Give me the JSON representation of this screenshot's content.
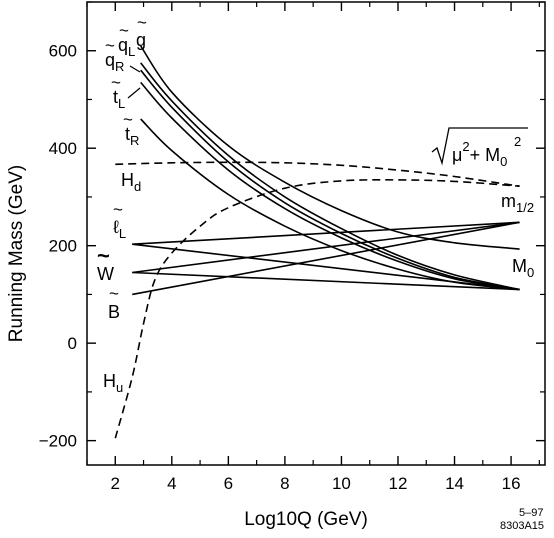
{
  "chart_data": {
    "type": "line",
    "xlabel": "Log10Q  (GeV)",
    "ylabel": "Running Mass  (GeV)",
    "xlim": [
      1.0,
      17.2
    ],
    "ylim": [
      -250,
      700
    ],
    "xticks": [
      "2",
      "4",
      "6",
      "8",
      "10",
      "12",
      "14",
      "16"
    ],
    "yticks": [
      "600",
      "400",
      "200",
      "0",
      "−200"
    ],
    "grid": false,
    "legend": "none (curves labelled directly)",
    "labels": {
      "gluino": "g",
      "squark_left": "q",
      "squark_left_sub": "L",
      "squark_right": "q",
      "squark_right_sub": "R",
      "stop_left": "t",
      "stop_left_sub": "L",
      "stop_right": "t",
      "stop_right_sub": "R",
      "higgs_d": "H",
      "higgs_d_sub": "d",
      "higgs_u": "H",
      "higgs_u_sub": "u",
      "slepton_left": "ℓ",
      "slepton_left_sub": "L",
      "wino": "W",
      "bino": "B",
      "m_half": "m",
      "m_half_sub": "1/2",
      "m_zero": "M",
      "m_zero_sub": "0",
      "sqrt_mu": "μ",
      "sqrt_mu_sup": "2",
      "sqrt_plus": "+ M",
      "sqrt_m0_sub": "0",
      "sqrt_m0_sup": "2"
    },
    "series": [
      {
        "key": "gluino",
        "style": "solid",
        "x": [
          2.9,
          4,
          6,
          8,
          10,
          12,
          14,
          16.3
        ],
        "y": [
          610,
          515,
          405,
          330,
          272,
          228,
          206,
          193
        ]
      },
      {
        "key": "squark_left",
        "style": "solid",
        "x": [
          2.9,
          4,
          6,
          8,
          10,
          12,
          14,
          16.3
        ],
        "y": [
          575,
          497,
          385,
          300,
          235,
          180,
          140,
          110
        ]
      },
      {
        "key": "squark_right",
        "style": "solid",
        "x": [
          2.9,
          4,
          6,
          8,
          10,
          12,
          14,
          16.3
        ],
        "y": [
          560,
          484,
          372,
          288,
          225,
          174,
          135,
          110
        ]
      },
      {
        "key": "stop_left",
        "style": "solid",
        "x": [
          2.9,
          4,
          6,
          8,
          10,
          12,
          14,
          16.3
        ],
        "y": [
          535,
          462,
          355,
          276,
          216,
          168,
          132,
          110
        ]
      },
      {
        "key": "stop_right",
        "style": "solid",
        "x": [
          2.9,
          4,
          6,
          8,
          10,
          12,
          14,
          16.3
        ],
        "y": [
          460,
          395,
          305,
          240,
          190,
          152,
          125,
          110
        ]
      },
      {
        "key": "higgs_d",
        "style": "dashed",
        "x": [
          2,
          4,
          6,
          8,
          10,
          12,
          14,
          16.3
        ],
        "y": [
          367,
          370,
          371,
          370,
          365,
          355,
          342,
          322
        ]
      },
      {
        "key": "higgs_u",
        "style": "dashed",
        "x": [
          2,
          2.6,
          3,
          3.4,
          4,
          5,
          6,
          8,
          10,
          12,
          14,
          16.3
        ],
        "y": [
          -195,
          -70,
          40,
          130,
          185,
          240,
          278,
          318,
          333,
          335,
          332,
          322
        ]
      },
      {
        "key": "slepton_left",
        "style": "solid",
        "x": [
          2.6,
          16.3
        ],
        "y": [
          203,
          110
        ]
      },
      {
        "key": "slepton_right_line",
        "style": "solid",
        "x": [
          2.6,
          16.3
        ],
        "y": [
          203,
          248
        ]
      },
      {
        "key": "wino",
        "style": "solid",
        "x": [
          2.6,
          16.3
        ],
        "y": [
          145,
          248
        ]
      },
      {
        "key": "wino_to_m0",
        "style": "solid",
        "x": [
          2.6,
          16.3
        ],
        "y": [
          145,
          110
        ]
      },
      {
        "key": "bino",
        "style": "solid",
        "x": [
          2.6,
          16.3
        ],
        "y": [
          100,
          248
        ]
      }
    ],
    "annotations": [
      "5–97",
      "8303A15"
    ]
  }
}
